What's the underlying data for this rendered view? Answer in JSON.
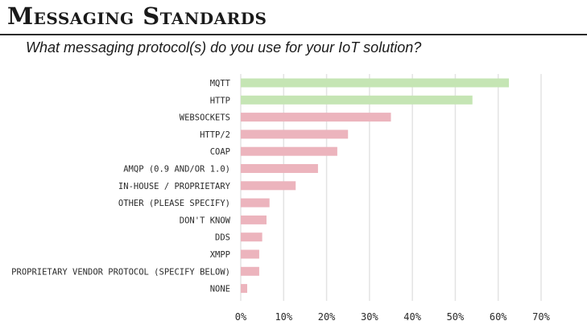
{
  "header": {
    "title": "Messaging Standards",
    "subtitle": "What messaging protocol(s) do you use for your IoT solution?"
  },
  "colors": {
    "highlight": "#c5e5b4",
    "normal": "#ecb4bd",
    "grid": "#e3e3e3"
  },
  "chart_data": {
    "type": "bar",
    "orientation": "horizontal",
    "categories": [
      "MQTT",
      "HTTP",
      "WEBSOCKETS",
      "HTTP/2",
      "COAP",
      "AMQP (0.9 AND/OR 1.0)",
      "IN-HOUSE / PROPRIETARY",
      "OTHER (PLEASE SPECIFY)",
      "DON'T KNOW",
      "DDS",
      "XMPP",
      "PROPRIETARY VENDOR PROTOCOL (SPECIFY BELOW)",
      "NONE"
    ],
    "values": [
      62.5,
      54,
      35,
      25,
      22.5,
      18,
      12.8,
      6.7,
      6,
      5,
      4.3,
      4.3,
      1.5
    ],
    "highlight": [
      true,
      true,
      false,
      false,
      false,
      false,
      false,
      false,
      false,
      false,
      false,
      false,
      false
    ],
    "xlim": [
      0,
      70
    ],
    "xticks": [
      0,
      10,
      20,
      30,
      40,
      50,
      60,
      70
    ],
    "tick_labels": [
      "0%",
      "10%",
      "20%",
      "30%",
      "40%",
      "50%",
      "60%",
      "70%"
    ],
    "grid": true
  }
}
